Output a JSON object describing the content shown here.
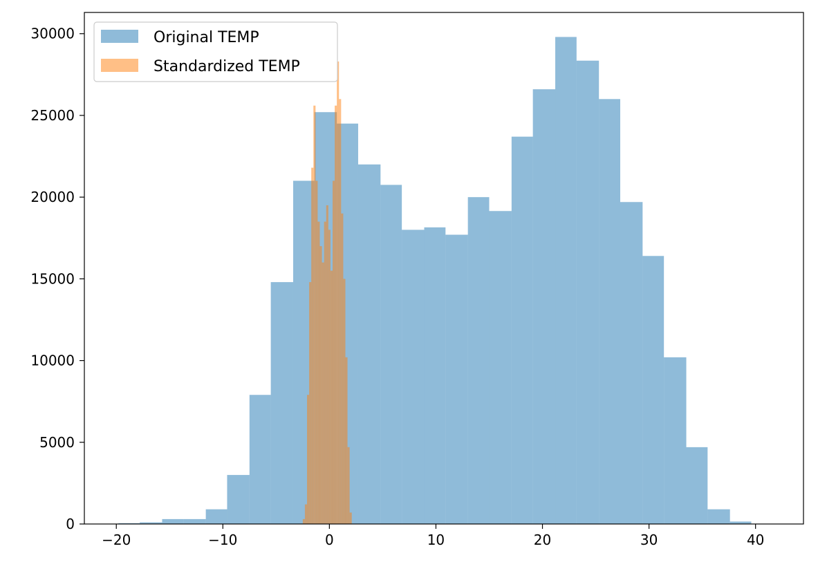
{
  "chart_data": {
    "type": "bar",
    "title": "",
    "xlabel": "",
    "ylabel": "",
    "xlim": [
      -23,
      44.5
    ],
    "ylim": [
      0,
      31300
    ],
    "x_ticks": [
      -20,
      -10,
      0,
      10,
      20,
      30,
      40
    ],
    "y_ticks": [
      0,
      5000,
      10000,
      15000,
      20000,
      25000,
      30000
    ],
    "grid": false,
    "legend_position": "top-left",
    "series": [
      {
        "name": "Original TEMP",
        "color": "#1f77b4",
        "opacity": 0.5,
        "bin_edges": [
          -19.8,
          -17.8,
          -15.7,
          -13.7,
          -11.6,
          -9.6,
          -7.5,
          -5.5,
          -3.4,
          -1.4,
          0.7,
          2.7,
          4.8,
          6.8,
          8.9,
          10.9,
          13.0,
          15.0,
          17.1,
          19.1,
          21.2,
          23.2,
          25.3,
          27.3,
          29.4,
          31.4,
          33.5,
          35.5,
          37.6,
          39.6,
          41.7
        ],
        "counts": [
          50,
          100,
          300,
          300,
          900,
          3000,
          7900,
          14800,
          21000,
          25200,
          24500,
          22000,
          20750,
          18000,
          18150,
          17700,
          20000,
          19150,
          23700,
          26600,
          29800,
          28350,
          26000,
          19700,
          16400,
          10200,
          4700,
          900,
          150,
          0
        ]
      },
      {
        "name": "Standardized TEMP",
        "color": "#ff7f0e",
        "opacity": 0.5,
        "bin_edges": [
          -2.5,
          -2.3,
          -2.1,
          -1.9,
          -1.7,
          -1.5,
          -1.3,
          -1.1,
          -0.9,
          -0.7,
          -0.5,
          -0.3,
          -0.1,
          0.1,
          0.3,
          0.5,
          0.7,
          0.9,
          1.1,
          1.3,
          1.5,
          1.7,
          1.9,
          2.1
        ],
        "counts": [
          300,
          1200,
          7900,
          14800,
          21800,
          25600,
          21000,
          18500,
          17000,
          16000,
          18500,
          19500,
          18000,
          15500,
          21000,
          25600,
          28300,
          26000,
          19000,
          15000,
          10200,
          4700,
          700
        ]
      }
    ]
  }
}
